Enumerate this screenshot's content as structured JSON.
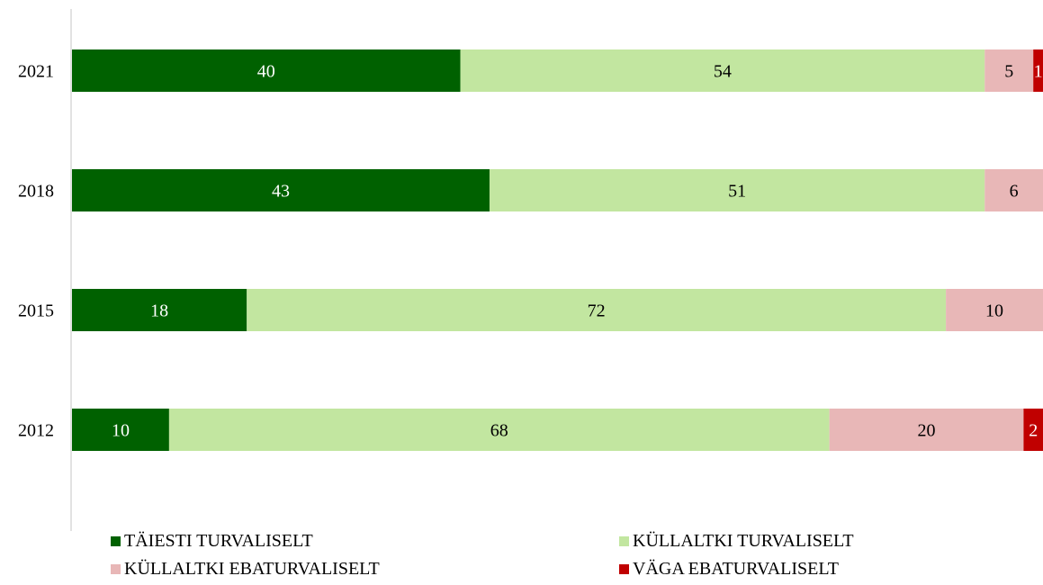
{
  "chart_data": {
    "type": "bar",
    "orientation": "horizontal",
    "stacked": true,
    "title": "",
    "xlabel": "",
    "ylabel": "",
    "xlim": [
      0,
      100
    ],
    "grid": false,
    "legend_position": "bottom",
    "categories": [
      "2021",
      "2018",
      "2015",
      "2012"
    ],
    "series": [
      {
        "name": "TÄIESTI TURVALISELT",
        "color": "#006100",
        "label_color": "#ffffff",
        "values": [
          40,
          43,
          18,
          10
        ]
      },
      {
        "name": "KÜLLALTKI TURVALISELT",
        "color": "#c2e6a0",
        "label_color": "#000000",
        "values": [
          54,
          51,
          72,
          68
        ]
      },
      {
        "name": "KÜLLALTKI EBATURVALISELT",
        "color": "#e8b7b7",
        "label_color": "#000000",
        "values": [
          5,
          6,
          10,
          20
        ]
      },
      {
        "name": "VÄGA EBATURVALISELT",
        "color": "#c00000",
        "label_color": "#ffffff",
        "values": [
          1,
          0,
          0,
          2
        ]
      }
    ]
  }
}
